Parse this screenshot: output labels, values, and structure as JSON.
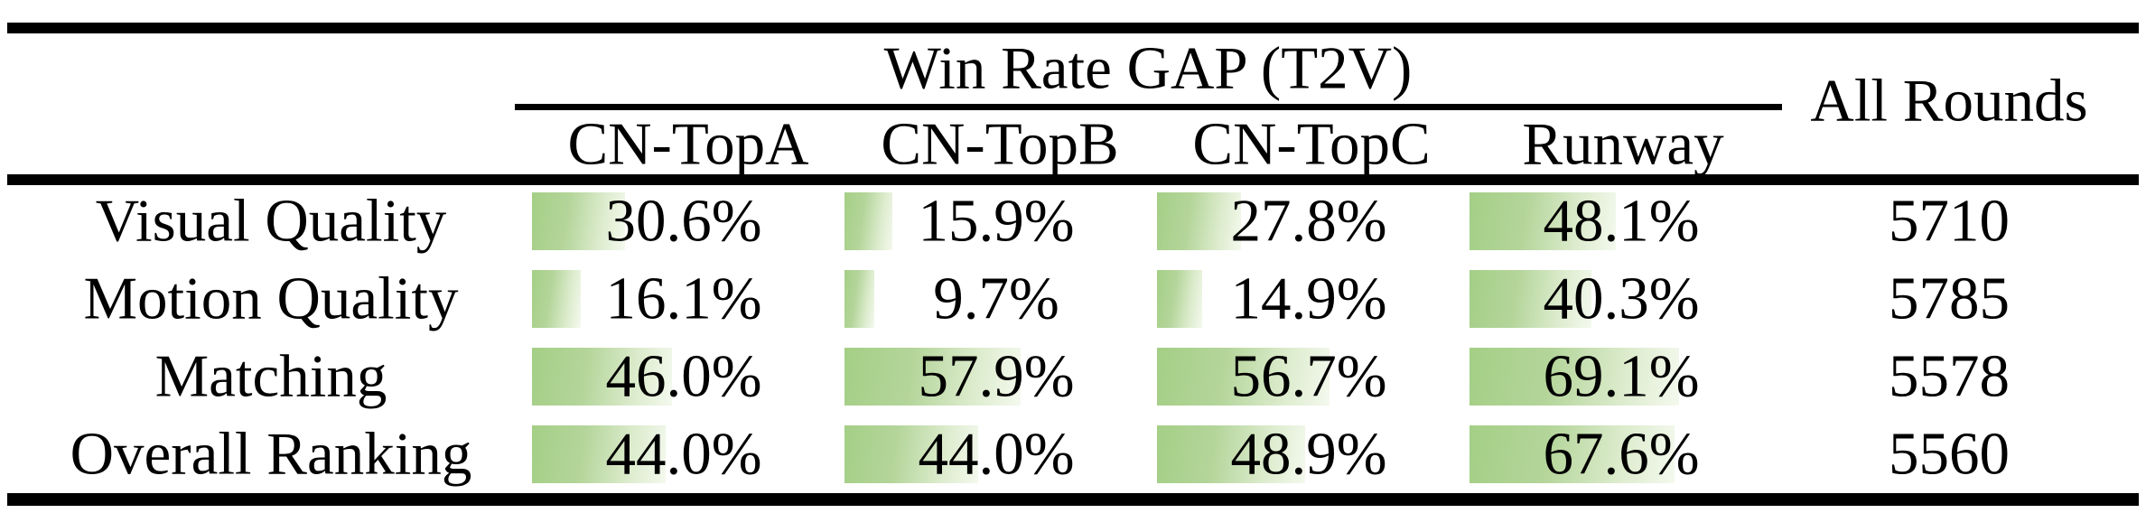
{
  "header": {
    "group_title": "Win Rate GAP (T2V)",
    "columns": [
      "CN-TopA",
      "CN-TopB",
      "CN-TopC",
      "Runway"
    ],
    "all_rounds": "All Rounds"
  },
  "rows": [
    {
      "label": "Visual Quality",
      "cells": [
        {
          "pct": 30.6,
          "text": "30.6%"
        },
        {
          "pct": 15.9,
          "text": "15.9%"
        },
        {
          "pct": 27.8,
          "text": "27.8%"
        },
        {
          "pct": 48.1,
          "text": "48.1%"
        }
      ],
      "all_rounds": "5710"
    },
    {
      "label": "Motion Quality",
      "cells": [
        {
          "pct": 16.1,
          "text": "16.1%"
        },
        {
          "pct": 9.7,
          "text": "9.7%"
        },
        {
          "pct": 14.9,
          "text": "14.9%"
        },
        {
          "pct": 40.3,
          "text": "40.3%"
        }
      ],
      "all_rounds": "5785"
    },
    {
      "label": "Matching",
      "cells": [
        {
          "pct": 46.0,
          "text": "46.0%"
        },
        {
          "pct": 57.9,
          "text": "57.9%"
        },
        {
          "pct": 56.7,
          "text": "56.7%"
        },
        {
          "pct": 69.1,
          "text": "69.1%"
        }
      ],
      "all_rounds": "5578"
    },
    {
      "label": "Overall Ranking",
      "cells": [
        {
          "pct": 44.0,
          "text": "44.0%"
        },
        {
          "pct": 44.0,
          "text": "44.0%"
        },
        {
          "pct": 48.9,
          "text": "48.9%"
        },
        {
          "pct": 67.6,
          "text": "67.6%"
        }
      ],
      "all_rounds": "5560"
    }
  ],
  "colors": {
    "bar_gradient_start": "#a4cf86",
    "bar_gradient_end": "#f4f9ee",
    "rule": "#000000",
    "text": "#000000",
    "background": "#ffffff"
  },
  "chart_data": {
    "type": "table",
    "title": "Win Rate GAP (T2V)",
    "categories": [
      "Visual Quality",
      "Motion Quality",
      "Matching",
      "Overall Ranking"
    ],
    "series": [
      {
        "name": "CN-TopA",
        "values": [
          30.6,
          16.1,
          46.0,
          44.0
        ]
      },
      {
        "name": "CN-TopB",
        "values": [
          15.9,
          9.7,
          57.9,
          44.0
        ]
      },
      {
        "name": "CN-TopC",
        "values": [
          27.8,
          14.9,
          56.7,
          48.9
        ]
      },
      {
        "name": "Runway",
        "values": [
          48.1,
          40.3,
          69.1,
          67.6
        ]
      }
    ],
    "extra_column": {
      "name": "All Rounds",
      "values": [
        5710,
        5785,
        5578,
        5560
      ]
    },
    "unit": "%",
    "layout_hints": "in-cell horizontal green gradient bars, left-aligned, scaled 0-100% of cell width"
  }
}
